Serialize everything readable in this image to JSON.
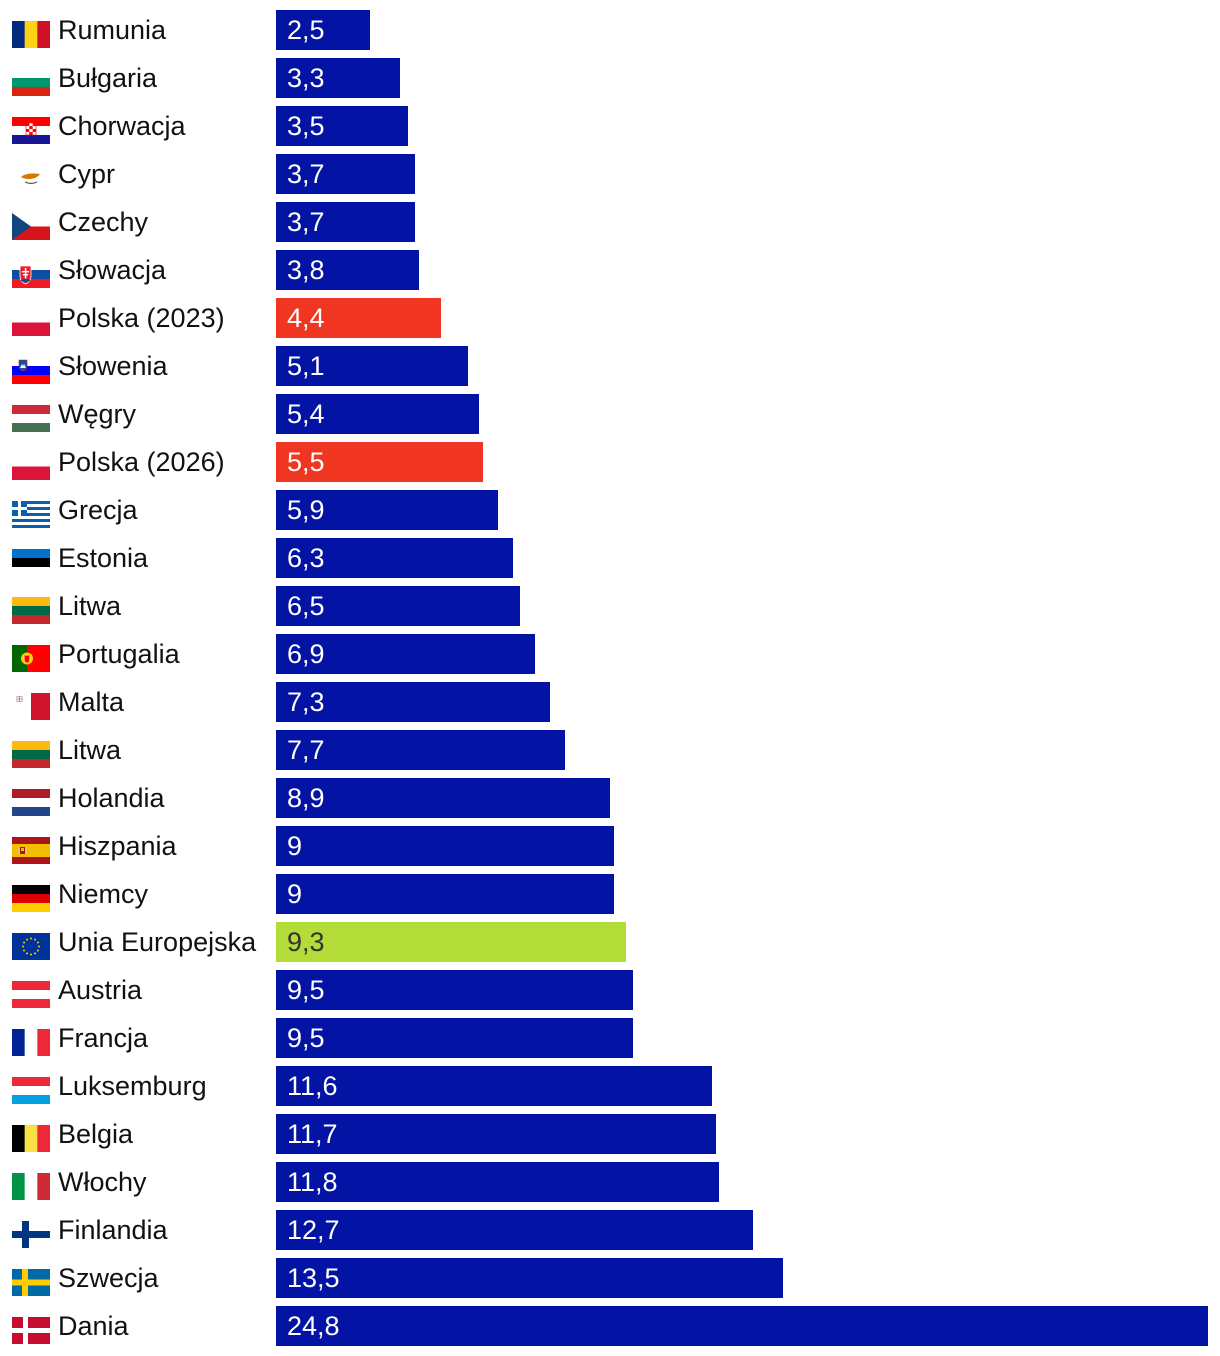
{
  "chart_data": {
    "type": "bar",
    "orientation": "horizontal",
    "title": "",
    "xlabel": "",
    "ylabel": "",
    "xlim": [
      0,
      24.8
    ],
    "grid": false,
    "legend": "none",
    "colors": {
      "default": "#0313a3",
      "poland": "#f03520",
      "eu": "#b4dc38"
    },
    "bars": [
      {
        "label": "Rumunia",
        "value": 2.5,
        "display": "2,5",
        "flag": "ro-flag-icon",
        "color": "default"
      },
      {
        "label": "Bułgaria",
        "value": 3.3,
        "display": "3,3",
        "flag": "bg-flag-icon",
        "color": "default"
      },
      {
        "label": "Chorwacja",
        "value": 3.5,
        "display": "3,5",
        "flag": "hr-flag-icon",
        "color": "default"
      },
      {
        "label": "Cypr",
        "value": 3.7,
        "display": "3,7",
        "flag": "cy-flag-icon",
        "color": "default"
      },
      {
        "label": "Czechy",
        "value": 3.7,
        "display": "3,7",
        "flag": "cz-flag-icon",
        "color": "default"
      },
      {
        "label": "Słowacja",
        "value": 3.8,
        "display": "3,8",
        "flag": "sk-flag-icon",
        "color": "default"
      },
      {
        "label": "Polska (2023)",
        "value": 4.4,
        "display": "4,4",
        "flag": "pl-flag-icon",
        "color": "poland"
      },
      {
        "label": "Słowenia",
        "value": 5.1,
        "display": "5,1",
        "flag": "si-flag-icon",
        "color": "default"
      },
      {
        "label": "Węgry",
        "value": 5.4,
        "display": "5,4",
        "flag": "hu-flag-icon",
        "color": "default"
      },
      {
        "label": "Polska (2026)",
        "value": 5.5,
        "display": "5,5",
        "flag": "pl-flag-icon",
        "color": "poland"
      },
      {
        "label": "Grecja",
        "value": 5.9,
        "display": "5,9",
        "flag": "gr-flag-icon",
        "color": "default"
      },
      {
        "label": "Estonia",
        "value": 6.3,
        "display": "6,3",
        "flag": "ee-flag-icon",
        "color": "default"
      },
      {
        "label": "Litwa",
        "value": 6.5,
        "display": "6,5",
        "flag": "lt-flag-icon",
        "color": "default"
      },
      {
        "label": "Portugalia",
        "value": 6.9,
        "display": "6,9",
        "flag": "pt-flag-icon",
        "color": "default"
      },
      {
        "label": "Malta",
        "value": 7.3,
        "display": "7,3",
        "flag": "mt-flag-icon",
        "color": "default"
      },
      {
        "label": "Litwa",
        "value": 7.7,
        "display": "7,7",
        "flag": "lt-flag-icon",
        "color": "default"
      },
      {
        "label": "Holandia",
        "value": 8.9,
        "display": "8,9",
        "flag": "nl-flag-icon",
        "color": "default"
      },
      {
        "label": "Hiszpania",
        "value": 9,
        "display": "9",
        "flag": "es-flag-icon",
        "color": "default"
      },
      {
        "label": "Niemcy",
        "value": 9,
        "display": "9",
        "flag": "de-flag-icon",
        "color": "default"
      },
      {
        "label": "Unia Europejska",
        "value": 9.3,
        "display": "9,3",
        "flag": "eu-flag-icon",
        "color": "eu"
      },
      {
        "label": "Austria",
        "value": 9.5,
        "display": "9,5",
        "flag": "at-flag-icon",
        "color": "default"
      },
      {
        "label": "Francja",
        "value": 9.5,
        "display": "9,5",
        "flag": "fr-flag-icon",
        "color": "default"
      },
      {
        "label": "Luksemburg",
        "value": 11.6,
        "display": "11,6",
        "flag": "lu-flag-icon",
        "color": "default"
      },
      {
        "label": "Belgia",
        "value": 11.7,
        "display": "11,7",
        "flag": "be-flag-icon",
        "color": "default"
      },
      {
        "label": "Włochy",
        "value": 11.8,
        "display": "11,8",
        "flag": "it-flag-icon",
        "color": "default"
      },
      {
        "label": "Finlandia",
        "value": 12.7,
        "display": "12,7",
        "flag": "fi-flag-icon",
        "color": "default"
      },
      {
        "label": "Szwecja",
        "value": 13.5,
        "display": "13,5",
        "flag": "se-flag-icon",
        "color": "default"
      },
      {
        "label": "Dania",
        "value": 24.8,
        "display": "24,8",
        "flag": "dk-flag-icon",
        "color": "default"
      }
    ]
  }
}
